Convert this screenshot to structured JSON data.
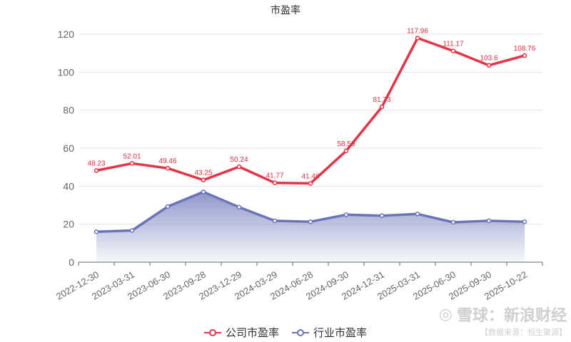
{
  "chart_data": {
    "type": "line",
    "title": "市盈率",
    "categories": [
      "2022-12-30",
      "2023-03-31",
      "2023-06-30",
      "2023-09-28",
      "2023-12-29",
      "2024-03-29",
      "2024-06-28",
      "2024-09-30",
      "2024-12-31",
      "2025-03-31",
      "2025-06-30",
      "2025-09-30",
      "2025-10-22"
    ],
    "series": [
      {
        "name": "公司市盈率",
        "color": "#e83347",
        "values": [
          48.23,
          52.01,
          49.46,
          43.25,
          50.24,
          41.77,
          41.46,
          58.59,
          81.73,
          117.96,
          111.17,
          103.6,
          108.76
        ],
        "labels": [
          "48.23",
          "52.01",
          "49.46",
          "43.25",
          "50.24",
          "41.77",
          "41.46",
          "58.59",
          "81.73",
          "117.96",
          "111.17",
          "103.6",
          "108.76"
        ],
        "area": false
      },
      {
        "name": "行业市盈率",
        "color": "#6a74b8",
        "values": [
          16.0,
          16.7,
          29.3,
          37.0,
          29.0,
          21.8,
          21.3,
          25.0,
          24.5,
          25.4,
          21.0,
          21.8,
          21.3
        ],
        "area": true
      }
    ],
    "ylim": [
      0,
      120
    ],
    "yticks": [
      0,
      20,
      40,
      60,
      80,
      100,
      120
    ],
    "grid": true,
    "legend_position": "bottom"
  },
  "watermark": {
    "main": "雪球：新浪财经",
    "sub": "【数据来源：恒生聚源】"
  }
}
